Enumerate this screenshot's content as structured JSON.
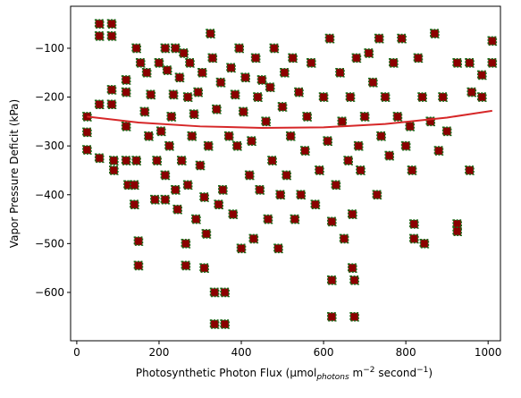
{
  "chart_data": {
    "type": "scatter",
    "xlabel": [
      "Photosynthetic Photon Flux (µmol",
      "photons",
      " m",
      "−2",
      " second",
      "−1",
      ")"
    ],
    "ylabel": "Vapor Pressure Deficit (kPa)",
    "xlim": [
      -15,
      1030
    ],
    "ylim": [
      -699,
      -14
    ],
    "xticks": [
      0,
      200,
      400,
      600,
      800,
      1000
    ],
    "yticks": [
      {
        "value": -600,
        "label": "−600"
      },
      {
        "value": -500,
        "label": "−500"
      },
      {
        "value": -400,
        "label": "−400"
      },
      {
        "value": -300,
        "label": "−300"
      },
      {
        "value": -200,
        "label": "−200"
      },
      {
        "value": -100,
        "label": "−100"
      }
    ],
    "color": "#8b0000",
    "edge_color": "#1a6b1a",
    "x": [
      25,
      25,
      25,
      55,
      55,
      55,
      55,
      85,
      85,
      85,
      85,
      90,
      90,
      120,
      120,
      120,
      120,
      125,
      140,
      140,
      145,
      145,
      150,
      150,
      155,
      165,
      170,
      175,
      180,
      190,
      195,
      200,
      205,
      215,
      215,
      215,
      220,
      225,
      230,
      235,
      240,
      240,
      245,
      250,
      255,
      260,
      265,
      265,
      270,
      270,
      275,
      280,
      285,
      290,
      295,
      300,
      305,
      310,
      310,
      315,
      320,
      325,
      330,
      335,
      335,
      340,
      345,
      350,
      355,
      360,
      360,
      370,
      375,
      380,
      385,
      390,
      395,
      400,
      405,
      410,
      420,
      425,
      430,
      435,
      440,
      445,
      450,
      460,
      465,
      470,
      475,
      480,
      490,
      495,
      500,
      505,
      510,
      520,
      525,
      530,
      540,
      545,
      555,
      560,
      570,
      580,
      590,
      600,
      610,
      615,
      620,
      620,
      620,
      630,
      640,
      645,
      650,
      660,
      665,
      670,
      670,
      675,
      675,
      680,
      685,
      690,
      700,
      710,
      720,
      730,
      735,
      740,
      750,
      760,
      770,
      780,
      790,
      800,
      810,
      815,
      820,
      820,
      830,
      840,
      845,
      860,
      870,
      880,
      890,
      900,
      925,
      925,
      925,
      955,
      955,
      960,
      985,
      985,
      1010,
      1010
    ],
    "values": [
      -240,
      -272,
      -308,
      -50,
      -75,
      -215,
      -325,
      -50,
      -75,
      -185,
      -215,
      -330,
      -350,
      -165,
      -190,
      -260,
      -330,
      -380,
      -380,
      -420,
      -330,
      -100,
      -495,
      -545,
      -130,
      -230,
      -150,
      -280,
      -195,
      -410,
      -330,
      -130,
      -270,
      -100,
      -360,
      -410,
      -145,
      -300,
      -240,
      -195,
      -100,
      -390,
      -430,
      -160,
      -330,
      -110,
      -500,
      -545,
      -200,
      -380,
      -130,
      -280,
      -235,
      -450,
      -190,
      -340,
      -150,
      -405,
      -550,
      -480,
      -300,
      -70,
      -120,
      -600,
      -665,
      -225,
      -420,
      -170,
      -390,
      -600,
      -665,
      -280,
      -140,
      -440,
      -195,
      -300,
      -100,
      -510,
      -230,
      -160,
      -360,
      -290,
      -490,
      -120,
      -200,
      -390,
      -165,
      -250,
      -450,
      -180,
      -330,
      -100,
      -510,
      -400,
      -220,
      -150,
      -360,
      -280,
      -120,
      -450,
      -190,
      -400,
      -310,
      -240,
      -130,
      -420,
      -350,
      -200,
      -290,
      -80,
      -455,
      -575,
      -650,
      -380,
      -150,
      -250,
      -490,
      -330,
      -200,
      -440,
      -550,
      -575,
      -650,
      -120,
      -300,
      -350,
      -240,
      -110,
      -170,
      -400,
      -80,
      -280,
      -200,
      -320,
      -130,
      -240,
      -80,
      -300,
      -260,
      -350,
      -460,
      -490,
      -120,
      -200,
      -500,
      -250,
      -70,
      -310,
      -200,
      -270,
      -130,
      -460,
      -475,
      -130,
      -350,
      -190,
      -155,
      -200,
      -85,
      -130
    ],
    "trend": {
      "color": "#d62728",
      "x": [
        25,
        150,
        300,
        450,
        600,
        750,
        900,
        1010
      ],
      "values": [
        -240,
        -252,
        -260,
        -263,
        -262,
        -255,
        -242,
        -228
      ]
    }
  }
}
